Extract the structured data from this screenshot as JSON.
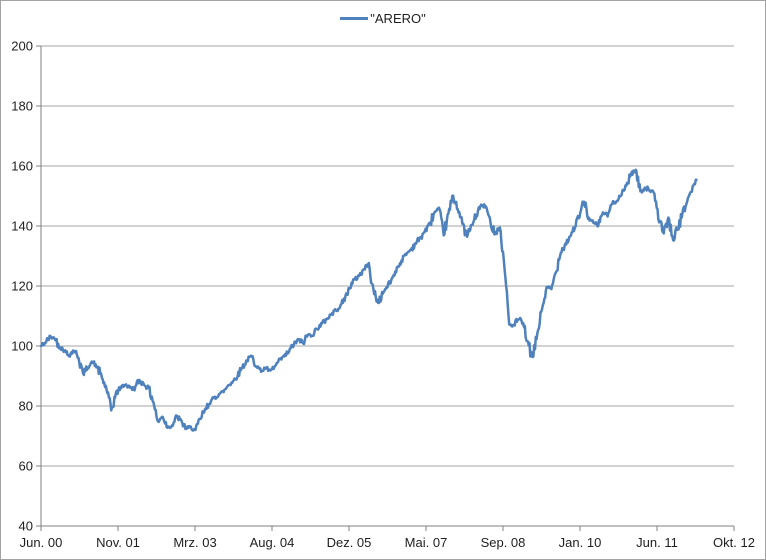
{
  "legend": {
    "label": "\"ARERO\""
  },
  "chart_data": {
    "type": "line",
    "title": "",
    "xlabel": "",
    "ylabel": "",
    "grid": true,
    "legend_position": "top-center",
    "ylim": [
      40,
      200
    ],
    "y_ticks": [
      40,
      60,
      80,
      100,
      120,
      140,
      160,
      180,
      200
    ],
    "x_tick_labels": [
      "Jun. 00",
      "Nov. 01",
      "Mrz. 03",
      "Aug. 04",
      "Dez. 05",
      "Mai. 07",
      "Sep. 08",
      "Jan. 10",
      "Jun. 11",
      "Okt. 12"
    ],
    "x_total_months": 148,
    "series": [
      {
        "name": "\"ARERO\"",
        "color": "#4F81BD",
        "start": "Jun 2000",
        "frequency": "monthly",
        "values": [
          100.0,
          101.2,
          103.2,
          102.4,
          99.6,
          98.4,
          96.8,
          98.6,
          96.2,
          90.6,
          93.0,
          94.6,
          93.0,
          89.4,
          85.6,
          78.6,
          84.2,
          86.2,
          87.2,
          86.2,
          85.6,
          88.6,
          87.2,
          86.0,
          81.4,
          74.6,
          76.6,
          72.9,
          73.5,
          76.6,
          74.8,
          72.4,
          73.0,
          71.8,
          75.6,
          78.6,
          81.0,
          82.6,
          84.0,
          84.8,
          87.0,
          88.2,
          90.2,
          93.0,
          95.2,
          96.6,
          93.4,
          91.6,
          92.6,
          91.6,
          93.2,
          95.4,
          96.6,
          98.2,
          100.6,
          102.2,
          100.9,
          103.8,
          103.6,
          105.8,
          107.4,
          109.0,
          110.6,
          112.0,
          113.4,
          116.4,
          119.6,
          122.2,
          123.6,
          125.6,
          127.2,
          118.5,
          114.4,
          117.6,
          119.8,
          122.6,
          126.0,
          128.4,
          130.6,
          132.2,
          134.2,
          136.0,
          138.4,
          140.6,
          144.4,
          145.6,
          137.2,
          144.0,
          150.0,
          146.0,
          140.8,
          136.6,
          140.2,
          143.6,
          147.0,
          146.4,
          141.0,
          137.6,
          139.6,
          126.0,
          107.2,
          106.8,
          109.0,
          107.2,
          101.0,
          95.8,
          104.2,
          112.4,
          119.6,
          119.0,
          124.8,
          131.4,
          134.0,
          136.6,
          139.6,
          143.2,
          148.2,
          142.6,
          141.0,
          140.2,
          144.6,
          143.4,
          147.6,
          148.6,
          150.4,
          153.6,
          157.4,
          158.6,
          151.6,
          152.8,
          152.0,
          150.4,
          141.6,
          138.0,
          142.6,
          135.4,
          139.2,
          144.0,
          148.6,
          151.8,
          155.4
        ]
      }
    ],
    "colors": {
      "series": "#4F81BD",
      "gridline": "#A6A6A6",
      "axis": "#808080",
      "text": "#1f1f1f",
      "background": "#FFFFFF",
      "border": "#A3A3A3"
    }
  }
}
